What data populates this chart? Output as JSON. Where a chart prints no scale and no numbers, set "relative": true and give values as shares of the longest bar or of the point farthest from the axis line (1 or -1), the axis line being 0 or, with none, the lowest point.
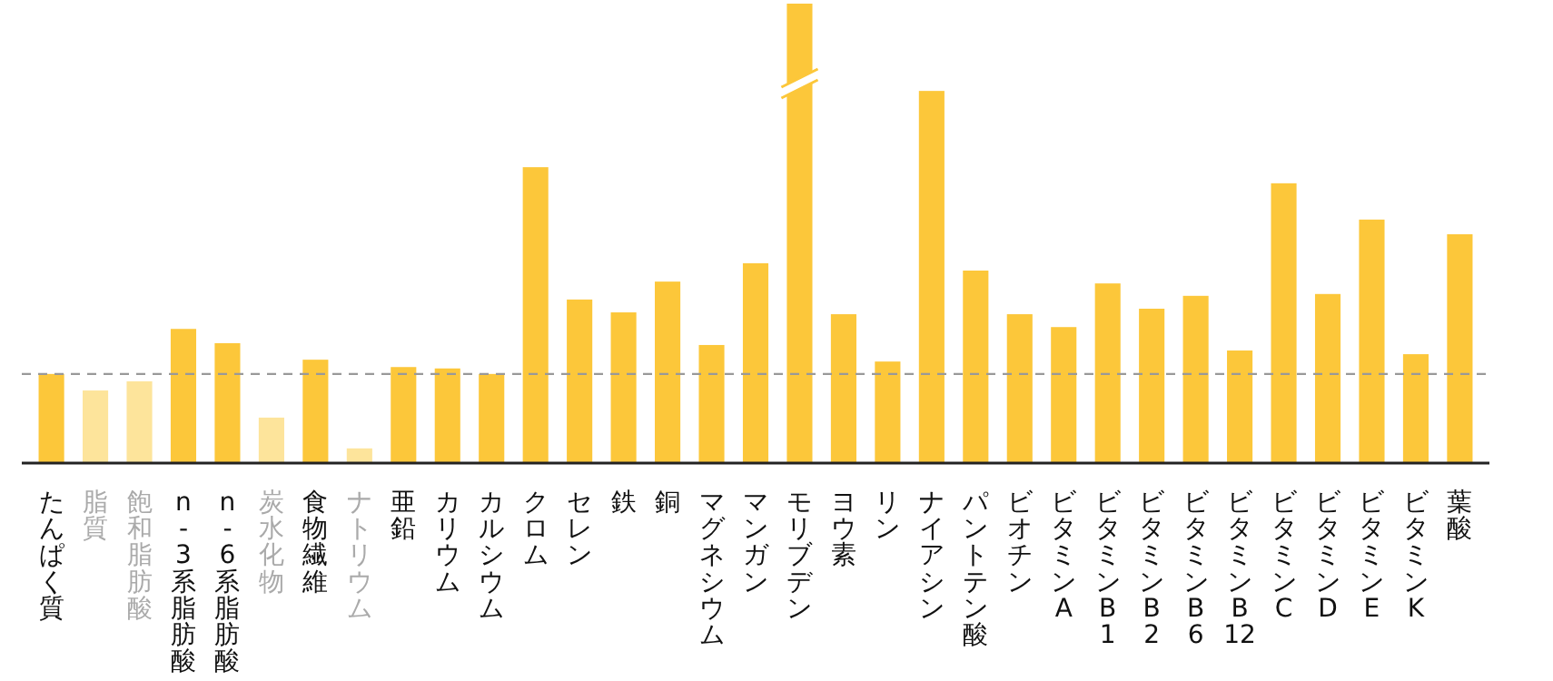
{
  "chart_data": {
    "type": "bar",
    "relative": true,
    "categories": [
      "たんぱく質",
      "脂質",
      "飽和脂肪酸",
      "n-3系脂肪酸",
      "n-6系脂肪酸",
      "炭水化物",
      "食物繊維",
      "ナトリウム",
      "亜鉛",
      "カリウム",
      "カルシウム",
      "クロム",
      "セレン",
      "鉄",
      "銅",
      "マグネシウム",
      "マンガン",
      "モリブデン",
      "ヨウ素",
      "リン",
      "ナイアシン",
      "パントテン酸",
      "ビオチン",
      "ビタミンA",
      "ビタミンB1",
      "ビタミンB2",
      "ビタミンB6",
      "ビタミンB12",
      "ビタミンC",
      "ビタミンD",
      "ビタミンE",
      "ビタミンK",
      "葉酸"
    ],
    "values": [
      0.194,
      0.158,
      0.178,
      0.292,
      0.261,
      0.099,
      0.225,
      0.032,
      0.209,
      0.206,
      0.194,
      0.644,
      0.356,
      0.328,
      0.395,
      0.257,
      0.435,
      1,
      0.324,
      0.221,
      0.81,
      0.419,
      0.324,
      0.296,
      0.391,
      0.336,
      0.364,
      0.245,
      0.609,
      0.368,
      0.53,
      0.237,
      0.498
    ],
    "colors": [
      "#fcc73a",
      "#fde49b",
      "#fde49b",
      "#fcc73a",
      "#fcc73a",
      "#fde49b",
      "#fcc73a",
      "#fde49b",
      "#fcc73a",
      "#fcc73a",
      "#fcc73a",
      "#fcc73a",
      "#fcc73a",
      "#fcc73a",
      "#fcc73a",
      "#fcc73a",
      "#fcc73a",
      "#fcc73a",
      "#fcc73a",
      "#fcc73a",
      "#fcc73a",
      "#fcc73a",
      "#fcc73a",
      "#fcc73a",
      "#fcc73a",
      "#fcc73a",
      "#fcc73a",
      "#fcc73a",
      "#fcc73a",
      "#fcc73a",
      "#fcc73a",
      "#fcc73a",
      "#fcc73a"
    ],
    "ref_lines": [
      {
        "axis": "y",
        "value": 0.194,
        "color": "#999999",
        "line_style": "dashed"
      }
    ]
  }
}
